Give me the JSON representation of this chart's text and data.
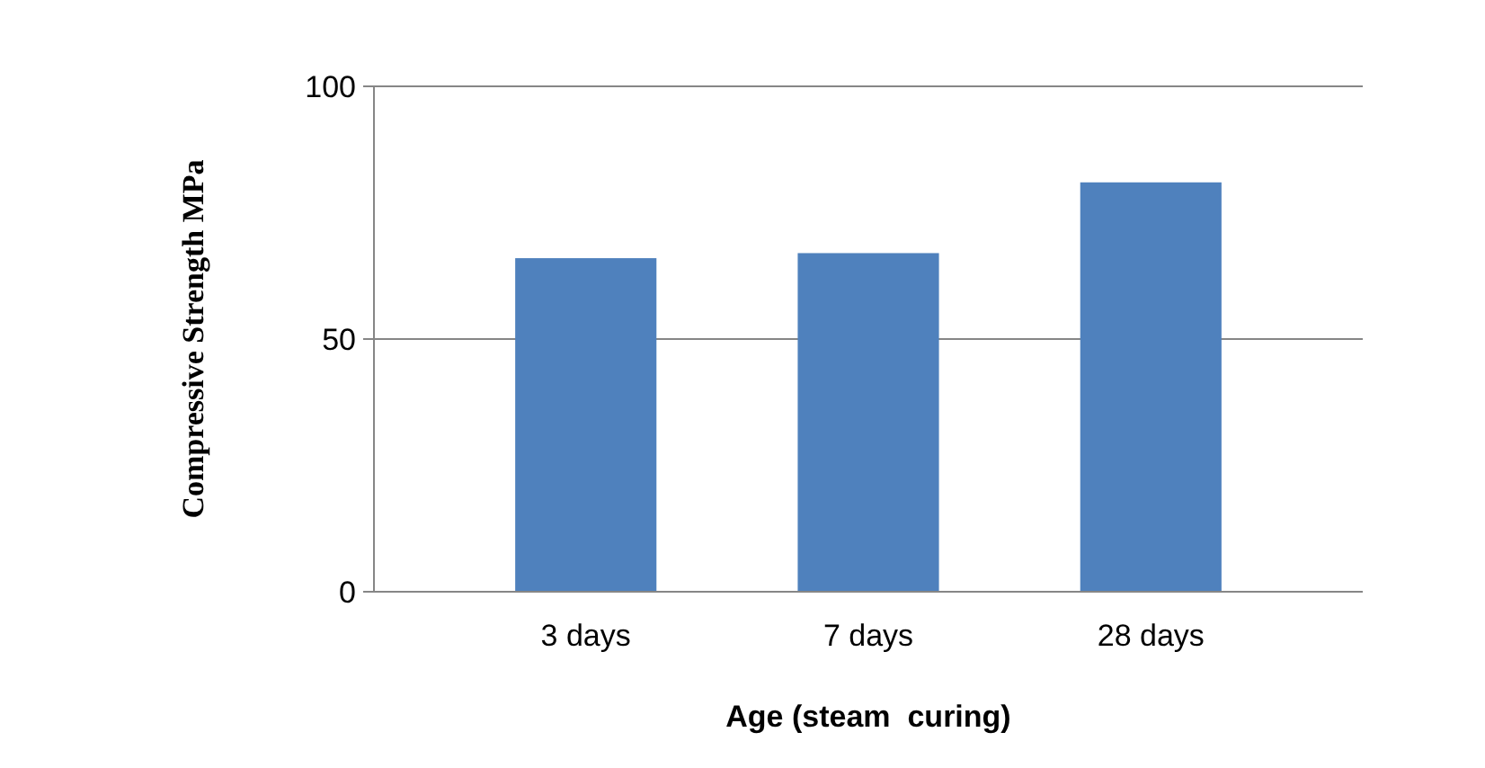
{
  "chart_data": {
    "type": "bar",
    "xlabel": "Age (steam  curing)",
    "ylabel": "Compressive Strength MPa",
    "categories": [
      "3 days",
      "7 days",
      "28 days"
    ],
    "values": [
      66,
      67,
      81
    ],
    "color": "#4f81bd",
    "ylim": [
      0,
      100
    ],
    "yticks": [
      0,
      50,
      100
    ],
    "grid": "y"
  }
}
